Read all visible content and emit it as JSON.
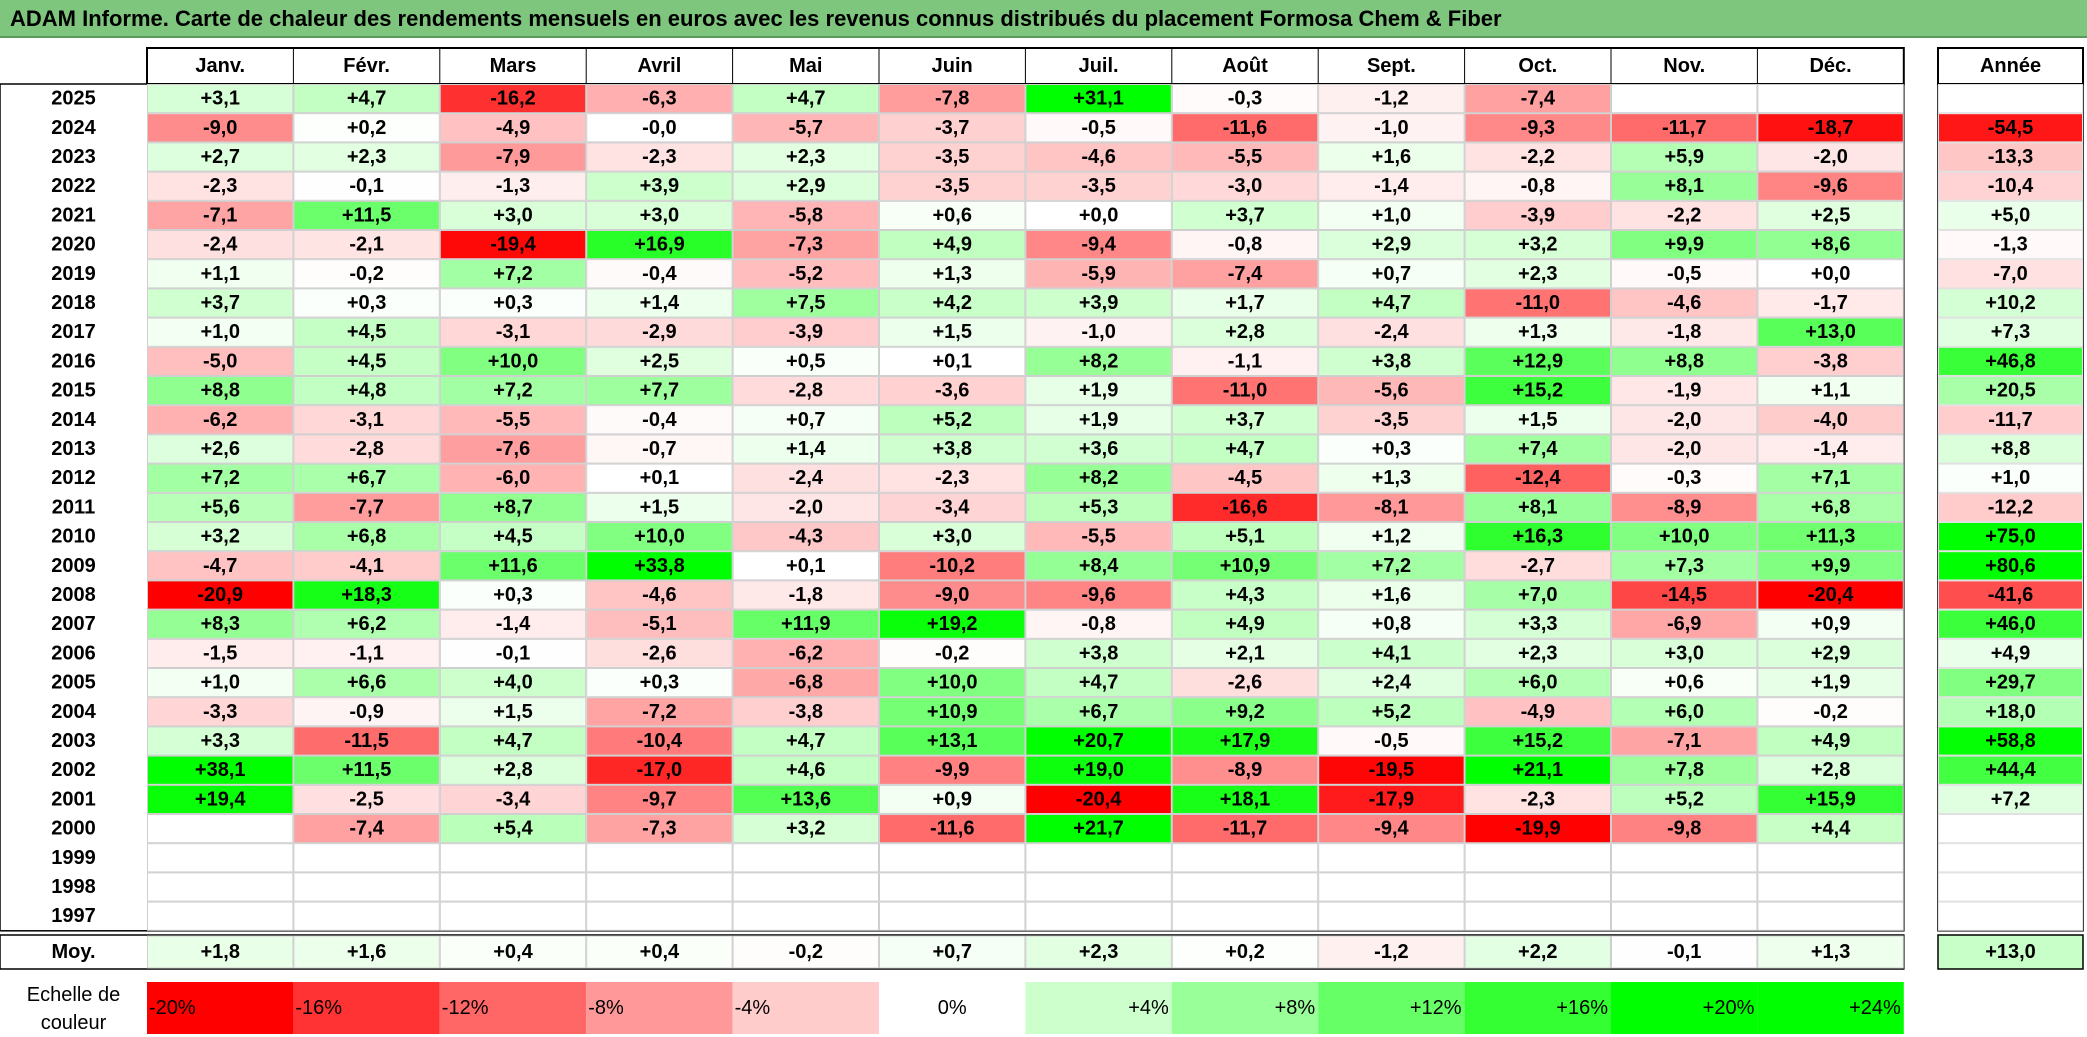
{
  "title": "ADAM Informe. Carte de chaleur des rendements mensuels en euros avec les revenus connus distribués du placement Formosa Chem & Fiber",
  "chart_data": {
    "type": "heatmap",
    "title": "ADAM Informe. Carte de chaleur des rendements mensuels en euros avec les revenus connus distribués du placement Formosa Chem & Fiber",
    "months": [
      "Janv.",
      "Févr.",
      "Mars",
      "Avril",
      "Mai",
      "Juin",
      "Juil.",
      "Août",
      "Sept.",
      "Oct.",
      "Nov.",
      "Déc."
    ],
    "year_header": "Année",
    "rows": [
      {
        "year": "2025",
        "values": [
          3.1,
          4.7,
          -16.2,
          -6.3,
          4.7,
          -7.8,
          31.1,
          -0.3,
          -1.2,
          -7.4,
          null,
          null
        ],
        "annual": null
      },
      {
        "year": "2024",
        "values": [
          -9.0,
          0.2,
          -4.9,
          -0.0,
          -5.7,
          -3.7,
          -0.5,
          -11.6,
          -1.0,
          -9.3,
          -11.7,
          -18.7
        ],
        "annual": -54.5
      },
      {
        "year": "2023",
        "values": [
          2.7,
          2.3,
          -7.9,
          -2.3,
          2.3,
          -3.5,
          -4.6,
          -5.5,
          1.6,
          -2.2,
          5.9,
          -2.0
        ],
        "annual": -13.3
      },
      {
        "year": "2022",
        "values": [
          -2.3,
          -0.1,
          -1.3,
          3.9,
          2.9,
          -3.5,
          -3.5,
          -3.0,
          -1.4,
          -0.8,
          8.1,
          -9.6
        ],
        "annual": -10.4
      },
      {
        "year": "2021",
        "values": [
          -7.1,
          11.5,
          3.0,
          3.0,
          -5.8,
          0.6,
          0.0,
          3.7,
          1.0,
          -3.9,
          -2.2,
          2.5
        ],
        "annual": 5.0
      },
      {
        "year": "2020",
        "values": [
          -2.4,
          -2.1,
          -19.4,
          16.9,
          -7.3,
          4.9,
          -9.4,
          -0.8,
          2.9,
          3.2,
          9.9,
          8.6
        ],
        "annual": -1.3
      },
      {
        "year": "2019",
        "values": [
          1.1,
          -0.2,
          7.2,
          -0.4,
          -5.2,
          1.3,
          -5.9,
          -7.4,
          0.7,
          2.3,
          -0.5,
          0.0
        ],
        "annual": -7.0
      },
      {
        "year": "2018",
        "values": [
          3.7,
          0.3,
          0.3,
          1.4,
          7.5,
          4.2,
          3.9,
          1.7,
          4.7,
          -11.0,
          -4.6,
          -1.7
        ],
        "annual": 10.2
      },
      {
        "year": "2017",
        "values": [
          1.0,
          4.5,
          -3.1,
          -2.9,
          -3.9,
          1.5,
          -1.0,
          2.8,
          -2.4,
          1.3,
          -1.8,
          13.0
        ],
        "annual": 7.3
      },
      {
        "year": "2016",
        "values": [
          -5.0,
          4.5,
          10.0,
          2.5,
          0.5,
          0.1,
          8.2,
          -1.1,
          3.8,
          12.9,
          8.8,
          -3.8
        ],
        "annual": 46.8
      },
      {
        "year": "2015",
        "values": [
          8.8,
          4.8,
          7.2,
          7.7,
          -2.8,
          -3.6,
          1.9,
          -11.0,
          -5.6,
          15.2,
          -1.9,
          1.1
        ],
        "annual": 20.5
      },
      {
        "year": "2014",
        "values": [
          -6.2,
          -3.1,
          -5.5,
          -0.4,
          0.7,
          5.2,
          1.9,
          3.7,
          -3.5,
          1.5,
          -2.0,
          -4.0
        ],
        "annual": -11.7
      },
      {
        "year": "2013",
        "values": [
          2.6,
          -2.8,
          -7.6,
          -0.7,
          1.4,
          3.8,
          3.6,
          4.7,
          0.3,
          7.4,
          -2.0,
          -1.4
        ],
        "annual": 8.8
      },
      {
        "year": "2012",
        "values": [
          7.2,
          6.7,
          -6.0,
          0.1,
          -2.4,
          -2.3,
          8.2,
          -4.5,
          1.3,
          -12.4,
          -0.3,
          7.1
        ],
        "annual": 1.0
      },
      {
        "year": "2011",
        "values": [
          5.6,
          -7.7,
          8.7,
          1.5,
          -2.0,
          -3.4,
          5.3,
          -16.6,
          -8.1,
          8.1,
          -8.9,
          6.8
        ],
        "annual": -12.2
      },
      {
        "year": "2010",
        "values": [
          3.2,
          6.8,
          4.5,
          10.0,
          -4.3,
          3.0,
          -5.5,
          5.1,
          1.2,
          16.3,
          10.0,
          11.3
        ],
        "annual": 75.0
      },
      {
        "year": "2009",
        "values": [
          -4.7,
          -4.1,
          11.6,
          33.8,
          0.1,
          -10.2,
          8.4,
          10.9,
          7.2,
          -2.7,
          7.3,
          9.9
        ],
        "annual": 80.6
      },
      {
        "year": "2008",
        "values": [
          -20.9,
          18.3,
          0.3,
          -4.6,
          -1.8,
          -9.0,
          -9.6,
          4.3,
          1.6,
          7.0,
          -14.5,
          -20.4
        ],
        "annual": -41.6
      },
      {
        "year": "2007",
        "values": [
          8.3,
          6.2,
          -1.4,
          -5.1,
          11.9,
          19.2,
          -0.8,
          4.9,
          0.8,
          3.3,
          -6.9,
          0.9
        ],
        "annual": 46.0
      },
      {
        "year": "2006",
        "values": [
          -1.5,
          -1.1,
          -0.1,
          -2.6,
          -6.2,
          -0.2,
          3.8,
          2.1,
          4.1,
          2.3,
          3.0,
          2.9
        ],
        "annual": 4.9
      },
      {
        "year": "2005",
        "values": [
          1.0,
          6.6,
          4.0,
          0.3,
          -6.8,
          10.0,
          4.7,
          -2.6,
          2.4,
          6.0,
          0.6,
          1.9
        ],
        "annual": 29.7
      },
      {
        "year": "2004",
        "values": [
          -3.3,
          -0.9,
          1.5,
          -7.2,
          -3.8,
          10.9,
          6.7,
          9.2,
          5.2,
          -4.9,
          6.0,
          -0.2
        ],
        "annual": 18.0
      },
      {
        "year": "2003",
        "values": [
          3.3,
          -11.5,
          4.7,
          -10.4,
          4.7,
          13.1,
          20.7,
          17.9,
          -0.5,
          15.2,
          -7.1,
          4.9
        ],
        "annual": 58.8
      },
      {
        "year": "2002",
        "values": [
          38.1,
          11.5,
          2.8,
          -17.0,
          4.6,
          -9.9,
          19.0,
          -8.9,
          -19.5,
          21.1,
          7.8,
          2.8
        ],
        "annual": 44.4
      },
      {
        "year": "2001",
        "values": [
          19.4,
          -2.5,
          -3.4,
          -9.7,
          13.6,
          0.9,
          -20.4,
          18.1,
          -17.9,
          -2.3,
          5.2,
          15.9
        ],
        "annual": 7.2
      },
      {
        "year": "2000",
        "values": [
          null,
          -7.4,
          5.4,
          -7.3,
          3.2,
          -11.6,
          21.7,
          -11.7,
          -9.4,
          -19.9,
          -9.8,
          4.4
        ],
        "annual": null
      },
      {
        "year": "1999",
        "values": [
          null,
          null,
          null,
          null,
          null,
          null,
          null,
          null,
          null,
          null,
          null,
          null
        ],
        "annual": null
      },
      {
        "year": "1998",
        "values": [
          null,
          null,
          null,
          null,
          null,
          null,
          null,
          null,
          null,
          null,
          null,
          null
        ],
        "annual": null
      },
      {
        "year": "1997",
        "values": [
          null,
          null,
          null,
          null,
          null,
          null,
          null,
          null,
          null,
          null,
          null,
          null
        ],
        "annual": null
      }
    ],
    "average": {
      "label": "Moy.",
      "values": [
        1.8,
        1.6,
        0.4,
        0.4,
        -0.2,
        0.7,
        2.3,
        0.2,
        -1.2,
        2.2,
        -0.1,
        1.3
      ],
      "annual": 13.0
    },
    "scale": {
      "label_line1": "Echelle de",
      "label_line2": "couleur",
      "steps": [
        {
          "label": "-20%",
          "value": -20
        },
        {
          "label": "-16%",
          "value": -16
        },
        {
          "label": "-12%",
          "value": -12
        },
        {
          "label": "-8%",
          "value": -8
        },
        {
          "label": "-4%",
          "value": -4
        },
        {
          "label": "0%",
          "value": 0
        },
        {
          "label": "+4%",
          "value": 4
        },
        {
          "label": "+8%",
          "value": 8
        },
        {
          "label": "+12%",
          "value": 12
        },
        {
          "label": "+16%",
          "value": 16
        },
        {
          "label": "+20%",
          "value": 20
        },
        {
          "label": "+24%",
          "value": 24
        }
      ]
    },
    "colors": {
      "negative_max": "#ff0000",
      "positive_max": "#00ff00",
      "neutral": "#ffffff",
      "title_bar": "#7ec57e"
    }
  }
}
